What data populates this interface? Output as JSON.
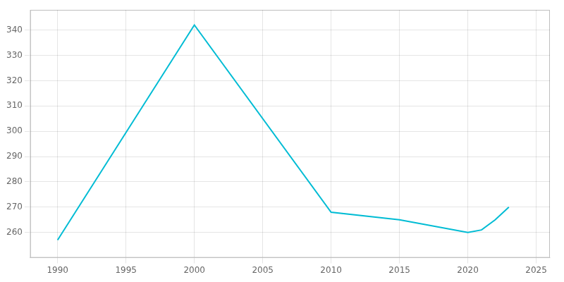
{
  "chart_data": {
    "type": "line",
    "x": [
      1990,
      2000,
      2010,
      2015,
      2020,
      2021,
      2022,
      2023
    ],
    "values": [
      257,
      342,
      268,
      265,
      260,
      261,
      265,
      270
    ],
    "color": "#00BCD4",
    "xlim": [
      1988,
      2026
    ],
    "ylim": [
      250,
      348
    ],
    "xticks": [
      1990,
      1995,
      2000,
      2005,
      2010,
      2015,
      2020,
      2025
    ],
    "yticks": [
      260,
      270,
      280,
      290,
      300,
      310,
      320,
      330,
      340
    ],
    "grid": true
  }
}
